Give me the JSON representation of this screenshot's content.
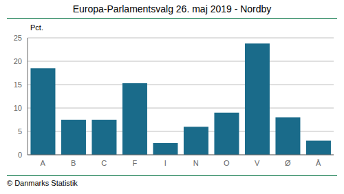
{
  "chart_data": {
    "type": "bar",
    "title": "Europa-Parlamentsvalg 26. maj 2019 - Nordby",
    "ylabel": "Pct.",
    "annotations": [
      "© Danmarks Statistik"
    ],
    "categories": [
      "A",
      "B",
      "C",
      "F",
      "I",
      "N",
      "O",
      "V",
      "Ø",
      "Å"
    ],
    "values": [
      18.5,
      7.5,
      7.5,
      15.3,
      2.5,
      6.0,
      9.0,
      23.8,
      8.0,
      3.0
    ],
    "color": "#1a6b8a",
    "ylim": [
      0,
      25
    ],
    "yticks": [
      0,
      5,
      10,
      15,
      20,
      25
    ],
    "grid": true
  }
}
